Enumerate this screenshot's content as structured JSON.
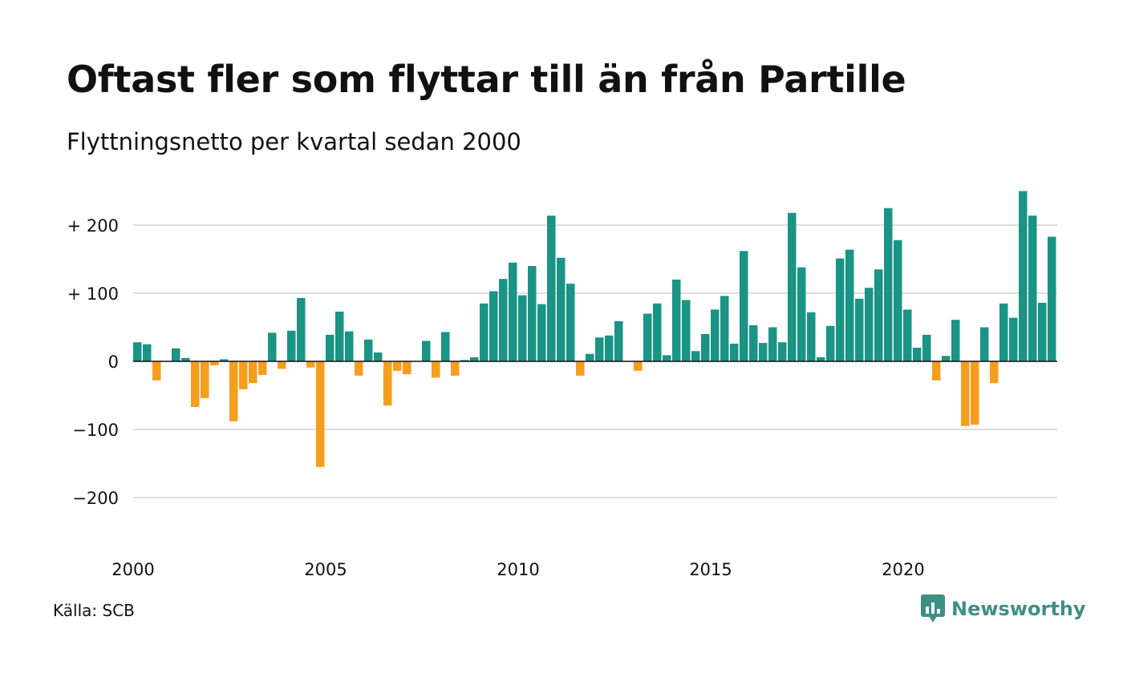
{
  "chart_data": {
    "type": "bar",
    "title": "Oftast fler som flyttar till än från Partille",
    "subtitle": "Flyttningsnetto per kvartal sedan 2000",
    "x_start_year": 2000,
    "quarters_per_year": 4,
    "values": [
      28,
      25,
      -28,
      0,
      19,
      5,
      -67,
      -54,
      -6,
      3,
      -88,
      -41,
      -32,
      -20,
      42,
      -11,
      45,
      93,
      -9,
      -155,
      39,
      73,
      44,
      -21,
      32,
      13,
      -65,
      -14,
      -19,
      0,
      30,
      -24,
      43,
      -21,
      2,
      6,
      85,
      103,
      121,
      145,
      97,
      140,
      84,
      214,
      152,
      114,
      -21,
      11,
      35,
      38,
      59,
      0,
      -14,
      70,
      85,
      9,
      120,
      90,
      15,
      40,
      76,
      96,
      26,
      162,
      53,
      27,
      50,
      28,
      218,
      138,
      72,
      6,
      52,
      151,
      164,
      92,
      108,
      135,
      225,
      178,
      76,
      20,
      39,
      -28,
      8,
      61,
      -95,
      -93,
      50,
      -32,
      85,
      64,
      250,
      214,
      86,
      183
    ],
    "x_ticks": [
      "2000",
      "2005",
      "2010",
      "2015",
      "2020"
    ],
    "y_ticks": [
      {
        "value": 200,
        "label": "+ 200"
      },
      {
        "value": 100,
        "label": "+ 100"
      },
      {
        "value": 0,
        "label": "0"
      },
      {
        "value": -100,
        "label": "−100"
      },
      {
        "value": -200,
        "label": "−200"
      }
    ],
    "ylim": [
      -200,
      250
    ],
    "grid": true,
    "colors": {
      "positive": "#1a9484",
      "negative": "#f59e1e",
      "grid": "#dddddd",
      "zero": "#111111"
    }
  },
  "footer": {
    "source": "Källa: SCB",
    "brand": "Newsworthy",
    "brand_icon": "newsworthy-logo-icon"
  }
}
